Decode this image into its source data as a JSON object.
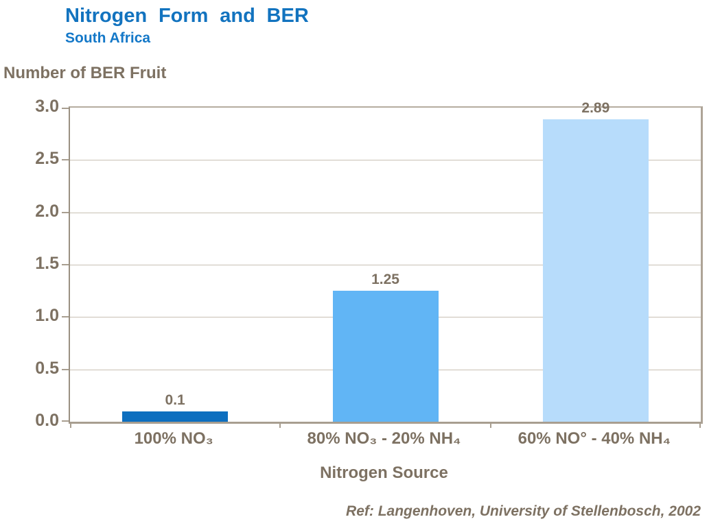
{
  "header": {
    "title": "Nitrogen Form and BER",
    "subtitle": "South Africa"
  },
  "chart_data": {
    "type": "bar",
    "title": "Nitrogen Form and BER",
    "subtitle": "South Africa",
    "ylabel": "Number of BER Fruit",
    "xlabel": "Nitrogen Source",
    "categories": [
      "100% NO₃",
      "80% NO₃ - 20% NH₄",
      "60% NO° - 40% NH₄"
    ],
    "values": [
      0.1,
      1.25,
      2.89
    ],
    "value_labels": [
      "0.1",
      "1.25",
      "2.89"
    ],
    "bar_colors": [
      "#0D6FBF",
      "#61B5F5",
      "#B7DCFB"
    ],
    "ylim": [
      0,
      3.0
    ],
    "ytick_step": 0.5,
    "ytick_labels": [
      "0.0",
      "0.5",
      "1.0",
      "1.5",
      "2.0",
      "2.5",
      "3.0"
    ],
    "grid": true,
    "legend": false
  },
  "footer": {
    "reference": "Ref: Langenhoven, University of Stellenbosch, 2002"
  },
  "colors": {
    "title_blue": "#1273BF",
    "subtitle_blue": "#1478C8",
    "axis_text_brown": "#7D7162",
    "gridline": "#C8C0B3",
    "axis_line": "#A89E90",
    "background": "#FFFFFF"
  }
}
